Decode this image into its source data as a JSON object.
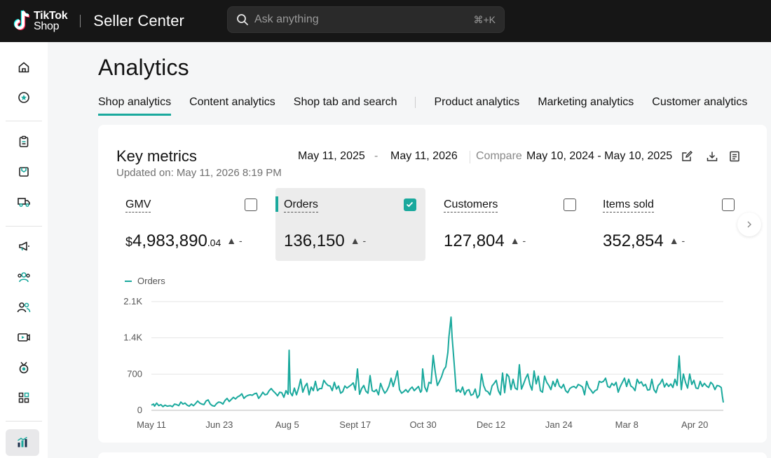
{
  "brand": {
    "logo_line1": "TikTok",
    "logo_line2": "Shop",
    "app_title": "Seller Center"
  },
  "search": {
    "placeholder": "Ask anything",
    "shortcut": "⌘+K"
  },
  "sidebar": {
    "items": [
      {
        "icon": "home-icon"
      },
      {
        "icon": "star-badge-icon"
      },
      {
        "icon": "clipboard-icon"
      },
      {
        "icon": "package-icon"
      },
      {
        "icon": "delivery-truck-icon"
      },
      {
        "icon": "megaphone-icon"
      },
      {
        "icon": "users-group-icon"
      },
      {
        "icon": "users-icon"
      },
      {
        "icon": "video-icon"
      },
      {
        "icon": "medal-icon"
      },
      {
        "icon": "grid-apps-icon"
      },
      {
        "icon": "bar-chart-icon",
        "active": true
      }
    ]
  },
  "page": {
    "title": "Analytics"
  },
  "tabs": [
    {
      "label": "Shop analytics",
      "active": true
    },
    {
      "label": "Content analytics"
    },
    {
      "label": "Shop tab and search"
    },
    {
      "label": "Product analytics"
    },
    {
      "label": "Marketing analytics"
    },
    {
      "label": "Customer analytics"
    }
  ],
  "key_metrics": {
    "title": "Key metrics",
    "updated": "Updated on: May 11, 2026 8:19 PM",
    "date_start": "May 11, 2025",
    "date_sep": "-",
    "date_end": "May 11, 2026",
    "compare_label": "Compare",
    "compare_range": "May 10, 2024 - May 10, 2025",
    "metrics": [
      {
        "label": "GMV",
        "currency": "$",
        "value": "4,983,890",
        "decimal": ".04",
        "trend": "▲ -",
        "checked": false,
        "selected": false
      },
      {
        "label": "Orders",
        "value": "136,150",
        "trend": "▲ -",
        "checked": true,
        "selected": true
      },
      {
        "label": "Customers",
        "value": "127,804",
        "trend": "▲ -",
        "checked": false,
        "selected": false
      },
      {
        "label": "Items sold",
        "value": "352,854",
        "trend": "▲ -",
        "checked": false,
        "selected": false
      }
    ]
  },
  "colors": {
    "accent": "#1aa99d",
    "topbar": "#161616"
  },
  "chart_data": {
    "type": "line",
    "legend": [
      "Orders"
    ],
    "series": [
      {
        "name": "Orders"
      }
    ],
    "y_ticks": [
      "0",
      "700",
      "1.4K",
      "2.1K"
    ],
    "ylim": [
      0,
      2100
    ],
    "x_ticks": [
      "May 11",
      "Jun 23",
      "Aug 5",
      "Sept 17",
      "Oct 30",
      "Dec 12",
      "Jan 24",
      "Mar 8",
      "Apr 20"
    ],
    "x_range": [
      "May 11, 2025",
      "May 11, 2026"
    ],
    "points": [
      [
        0,
        100
      ],
      [
        2,
        120
      ],
      [
        3,
        80
      ],
      [
        5,
        140
      ],
      [
        7,
        90
      ],
      [
        9,
        110
      ],
      [
        11,
        70
      ],
      [
        13,
        100
      ],
      [
        15,
        80
      ],
      [
        18,
        90
      ],
      [
        20,
        70
      ],
      [
        22,
        120
      ],
      [
        24,
        110
      ],
      [
        26,
        90
      ],
      [
        28,
        160
      ],
      [
        30,
        120
      ],
      [
        32,
        140
      ],
      [
        34,
        100
      ],
      [
        36,
        80
      ],
      [
        38,
        120
      ],
      [
        40,
        90
      ],
      [
        42,
        130
      ],
      [
        44,
        180
      ],
      [
        46,
        140
      ],
      [
        48,
        120
      ],
      [
        50,
        110
      ],
      [
        52,
        180
      ],
      [
        54,
        200
      ],
      [
        56,
        120
      ],
      [
        58,
        90
      ],
      [
        60,
        80
      ],
      [
        62,
        130
      ],
      [
        64,
        160
      ],
      [
        66,
        150
      ],
      [
        68,
        120
      ],
      [
        70,
        190
      ],
      [
        72,
        230
      ],
      [
        74,
        170
      ],
      [
        76,
        210
      ],
      [
        78,
        250
      ],
      [
        80,
        220
      ],
      [
        82,
        260
      ],
      [
        84,
        280
      ],
      [
        86,
        320
      ],
      [
        88,
        230
      ],
      [
        90,
        270
      ],
      [
        92,
        290
      ],
      [
        94,
        300
      ],
      [
        96,
        290
      ],
      [
        98,
        320
      ],
      [
        100,
        330
      ],
      [
        102,
        230
      ],
      [
        104,
        280
      ],
      [
        106,
        350
      ],
      [
        108,
        300
      ],
      [
        110,
        310
      ],
      [
        112,
        380
      ],
      [
        114,
        420
      ],
      [
        116,
        370
      ],
      [
        118,
        330
      ],
      [
        120,
        280
      ],
      [
        122,
        350
      ],
      [
        124,
        340
      ],
      [
        126,
        250
      ],
      [
        128,
        380
      ],
      [
        130,
        310
      ],
      [
        131,
        1160
      ],
      [
        132,
        350
      ],
      [
        134,
        280
      ],
      [
        136,
        430
      ],
      [
        138,
        300
      ],
      [
        140,
        430
      ],
      [
        142,
        600
      ],
      [
        144,
        350
      ],
      [
        146,
        460
      ],
      [
        148,
        520
      ],
      [
        150,
        300
      ],
      [
        152,
        450
      ],
      [
        154,
        380
      ],
      [
        156,
        560
      ],
      [
        158,
        380
      ],
      [
        160,
        420
      ],
      [
        162,
        420
      ],
      [
        164,
        580
      ],
      [
        166,
        520
      ],
      [
        168,
        480
      ],
      [
        170,
        470
      ],
      [
        172,
        380
      ],
      [
        174,
        540
      ],
      [
        176,
        410
      ],
      [
        178,
        470
      ],
      [
        180,
        330
      ],
      [
        182,
        360
      ],
      [
        184,
        470
      ],
      [
        186,
        430
      ],
      [
        188,
        460
      ],
      [
        190,
        490
      ],
      [
        192,
        530
      ],
      [
        194,
        390
      ],
      [
        196,
        800
      ],
      [
        198,
        310
      ],
      [
        200,
        420
      ],
      [
        202,
        480
      ],
      [
        204,
        370
      ],
      [
        206,
        330
      ],
      [
        208,
        670
      ],
      [
        210,
        380
      ],
      [
        212,
        360
      ],
      [
        214,
        400
      ],
      [
        216,
        300
      ],
      [
        218,
        520
      ],
      [
        220,
        410
      ],
      [
        222,
        330
      ],
      [
        224,
        380
      ],
      [
        226,
        470
      ],
      [
        228,
        620
      ],
      [
        230,
        460
      ],
      [
        232,
        600
      ],
      [
        234,
        760
      ],
      [
        236,
        400
      ],
      [
        238,
        330
      ],
      [
        240,
        360
      ],
      [
        242,
        400
      ],
      [
        244,
        350
      ],
      [
        246,
        410
      ],
      [
        248,
        450
      ],
      [
        250,
        380
      ],
      [
        252,
        420
      ],
      [
        254,
        460
      ],
      [
        256,
        350
      ],
      [
        257,
        380
      ],
      [
        258,
        800
      ],
      [
        260,
        450
      ],
      [
        262,
        360
      ],
      [
        264,
        540
      ],
      [
        266,
        520
      ],
      [
        268,
        1060
      ],
      [
        270,
        740
      ],
      [
        272,
        480
      ],
      [
        274,
        560
      ],
      [
        276,
        650
      ],
      [
        278,
        780
      ],
      [
        280,
        840
      ],
      [
        282,
        1120
      ],
      [
        283,
        1420
      ],
      [
        285,
        1800
      ],
      [
        286,
        1420
      ],
      [
        288,
        900
      ],
      [
        290,
        360
      ],
      [
        292,
        400
      ],
      [
        294,
        350
      ],
      [
        296,
        450
      ],
      [
        298,
        300
      ],
      [
        300,
        380
      ],
      [
        302,
        400
      ],
      [
        304,
        290
      ],
      [
        306,
        310
      ],
      [
        308,
        410
      ],
      [
        310,
        240
      ],
      [
        312,
        300
      ],
      [
        314,
        700
      ],
      [
        316,
        480
      ],
      [
        318,
        380
      ],
      [
        320,
        360
      ],
      [
        322,
        300
      ],
      [
        324,
        470
      ],
      [
        326,
        520
      ],
      [
        328,
        580
      ],
      [
        330,
        380
      ],
      [
        332,
        300
      ],
      [
        334,
        720
      ],
      [
        336,
        340
      ],
      [
        338,
        700
      ],
      [
        340,
        650
      ],
      [
        342,
        400
      ],
      [
        344,
        600
      ],
      [
        346,
        430
      ],
      [
        348,
        400
      ],
      [
        350,
        880
      ],
      [
        352,
        410
      ],
      [
        354,
        510
      ],
      [
        356,
        620
      ],
      [
        358,
        700
      ],
      [
        360,
        500
      ],
      [
        362,
        390
      ],
      [
        364,
        760
      ],
      [
        366,
        510
      ],
      [
        368,
        660
      ],
      [
        370,
        380
      ],
      [
        372,
        350
      ],
      [
        374,
        660
      ],
      [
        376,
        540
      ],
      [
        378,
        480
      ],
      [
        380,
        400
      ],
      [
        382,
        560
      ],
      [
        384,
        460
      ],
      [
        386,
        600
      ],
      [
        388,
        470
      ],
      [
        390,
        430
      ],
      [
        392,
        500
      ],
      [
        394,
        380
      ],
      [
        396,
        340
      ],
      [
        398,
        420
      ],
      [
        400,
        450
      ],
      [
        402,
        460
      ],
      [
        404,
        430
      ],
      [
        406,
        500
      ],
      [
        408,
        480
      ],
      [
        410,
        450
      ],
      [
        412,
        300
      ],
      [
        414,
        560
      ],
      [
        416,
        440
      ],
      [
        418,
        390
      ],
      [
        420,
        330
      ],
      [
        422,
        380
      ],
      [
        424,
        400
      ],
      [
        426,
        560
      ],
      [
        428,
        540
      ],
      [
        430,
        560
      ],
      [
        432,
        620
      ],
      [
        434,
        460
      ],
      [
        436,
        440
      ],
      [
        438,
        520
      ],
      [
        440,
        480
      ],
      [
        442,
        540
      ],
      [
        444,
        350
      ],
      [
        446,
        460
      ],
      [
        448,
        540
      ],
      [
        450,
        620
      ],
      [
        452,
        460
      ],
      [
        454,
        600
      ],
      [
        456,
        470
      ],
      [
        458,
        440
      ],
      [
        460,
        380
      ],
      [
        462,
        600
      ],
      [
        464,
        520
      ],
      [
        466,
        550
      ],
      [
        468,
        470
      ],
      [
        470,
        500
      ],
      [
        472,
        390
      ],
      [
        474,
        400
      ],
      [
        476,
        600
      ],
      [
        478,
        400
      ],
      [
        480,
        340
      ],
      [
        482,
        480
      ],
      [
        484,
        520
      ],
      [
        486,
        600
      ],
      [
        488,
        450
      ],
      [
        490,
        520
      ],
      [
        492,
        460
      ],
      [
        494,
        510
      ],
      [
        496,
        440
      ],
      [
        498,
        600
      ],
      [
        500,
        480
      ],
      [
        502,
        1050
      ],
      [
        504,
        400
      ],
      [
        506,
        700
      ],
      [
        508,
        540
      ],
      [
        510,
        430
      ],
      [
        512,
        700
      ],
      [
        514,
        500
      ],
      [
        516,
        580
      ],
      [
        518,
        430
      ],
      [
        520,
        420
      ],
      [
        522,
        560
      ],
      [
        524,
        460
      ],
      [
        526,
        520
      ],
      [
        528,
        470
      ],
      [
        530,
        440
      ],
      [
        532,
        540
      ],
      [
        534,
        500
      ],
      [
        536,
        400
      ],
      [
        538,
        480
      ],
      [
        540,
        470
      ],
      [
        542,
        440
      ],
      [
        543,
        280
      ],
      [
        544,
        150
      ]
    ]
  }
}
